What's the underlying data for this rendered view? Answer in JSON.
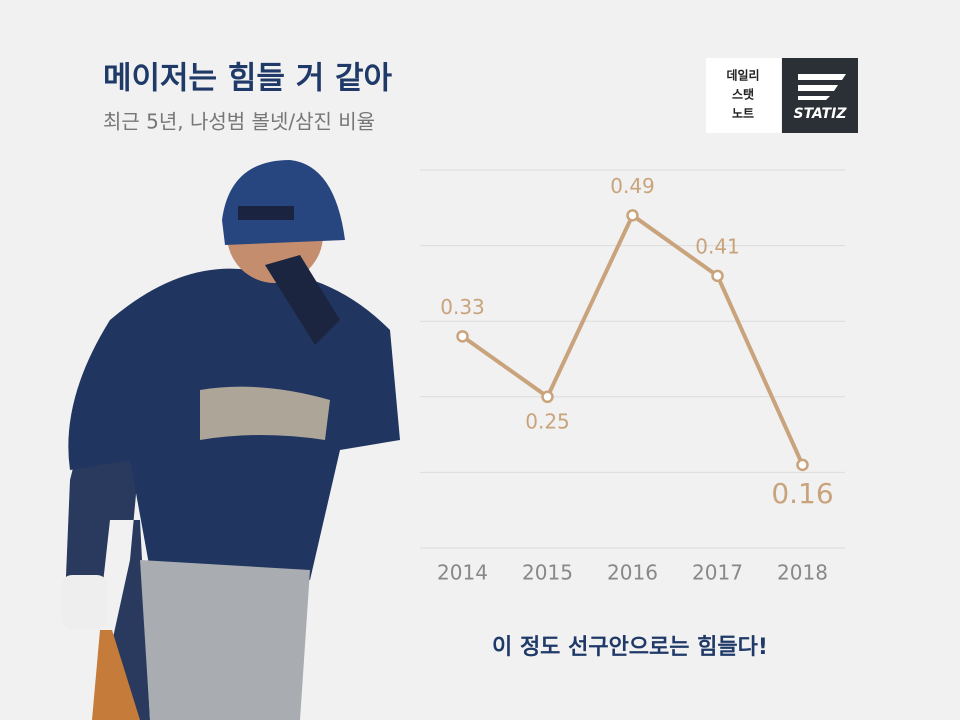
{
  "header": {
    "title": "메이저는 힘들 거 같아",
    "subtitle": "최근 5년, 나성범 볼넷/삼진 비율"
  },
  "logo": {
    "lines": [
      "데일리",
      "스탯",
      "노트"
    ],
    "brand": "STATIZ"
  },
  "chart_data": {
    "type": "line",
    "categories": [
      "2014",
      "2015",
      "2016",
      "2017",
      "2018"
    ],
    "series": [
      {
        "name": "볼넷/삼진 비율",
        "color": "#c9a37c",
        "values": [
          0.33,
          0.25,
          0.49,
          0.41,
          0.16
        ]
      }
    ],
    "ylim": [
      0.05,
      0.55
    ],
    "yticks": [
      0.05,
      0.15,
      0.25,
      0.35,
      0.45,
      0.55
    ],
    "grid": true
  },
  "footer": {
    "caption": "이 정도 선구안으로는 힘들다!"
  }
}
